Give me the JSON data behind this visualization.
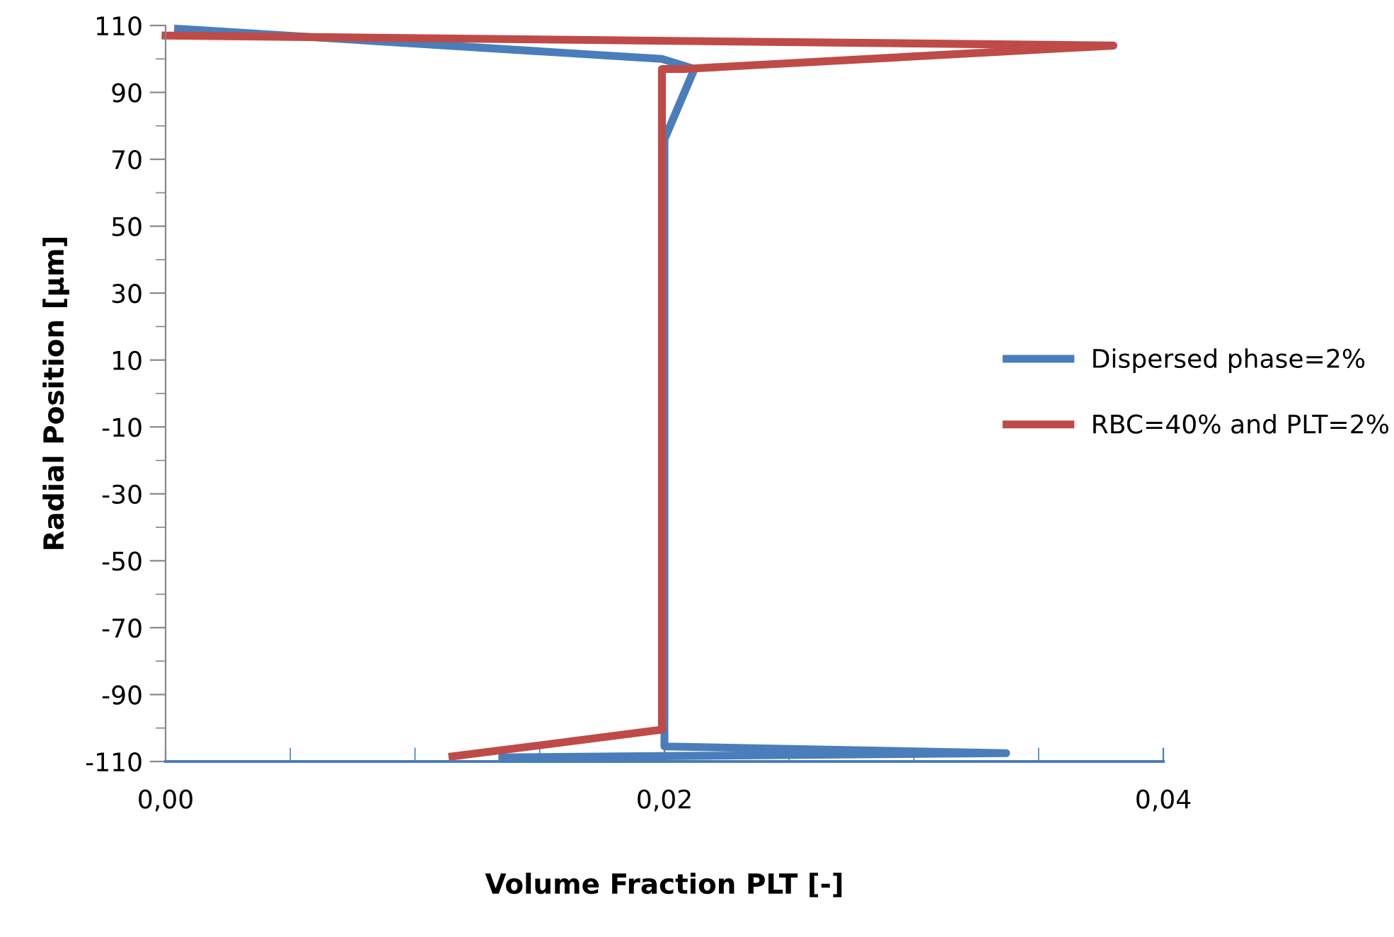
{
  "chart_data": {
    "type": "line",
    "xlabel": "Volume Fraction PLT [-]",
    "ylabel": "Radial Position [µm]",
    "xlim": [
      0,
      0.04
    ],
    "xticks": [
      {
        "value": 0,
        "label": "0,00"
      },
      {
        "value": 0.02,
        "label": "0,02"
      },
      {
        "value": 0.04,
        "label": "0,04"
      }
    ],
    "ylim": [
      -110,
      110
    ],
    "yticks": [
      -110,
      -90,
      -70,
      -50,
      -30,
      -10,
      10,
      30,
      50,
      70,
      90,
      110
    ],
    "grid": false,
    "legend": "right",
    "marker": "none",
    "line_style": "solid",
    "series": [
      {
        "name": "Dispersed phase=2%",
        "color": "#4a7ebb",
        "x": [
          0.0005,
          0.0199,
          0.0212,
          0.02,
          0.02,
          0.0337,
          0.0135
        ],
        "values": [
          109,
          100,
          97,
          76,
          -105.5,
          -107.5,
          -108.8
        ]
      },
      {
        "name": "RBC=40% and PLT=2%",
        "color": "#be4b48",
        "x": [
          0.0,
          0.038,
          0.0208,
          0.0199,
          0.0199,
          0.0115
        ],
        "values": [
          107,
          104,
          97,
          97,
          -100.5,
          -108.5
        ]
      }
    ]
  }
}
